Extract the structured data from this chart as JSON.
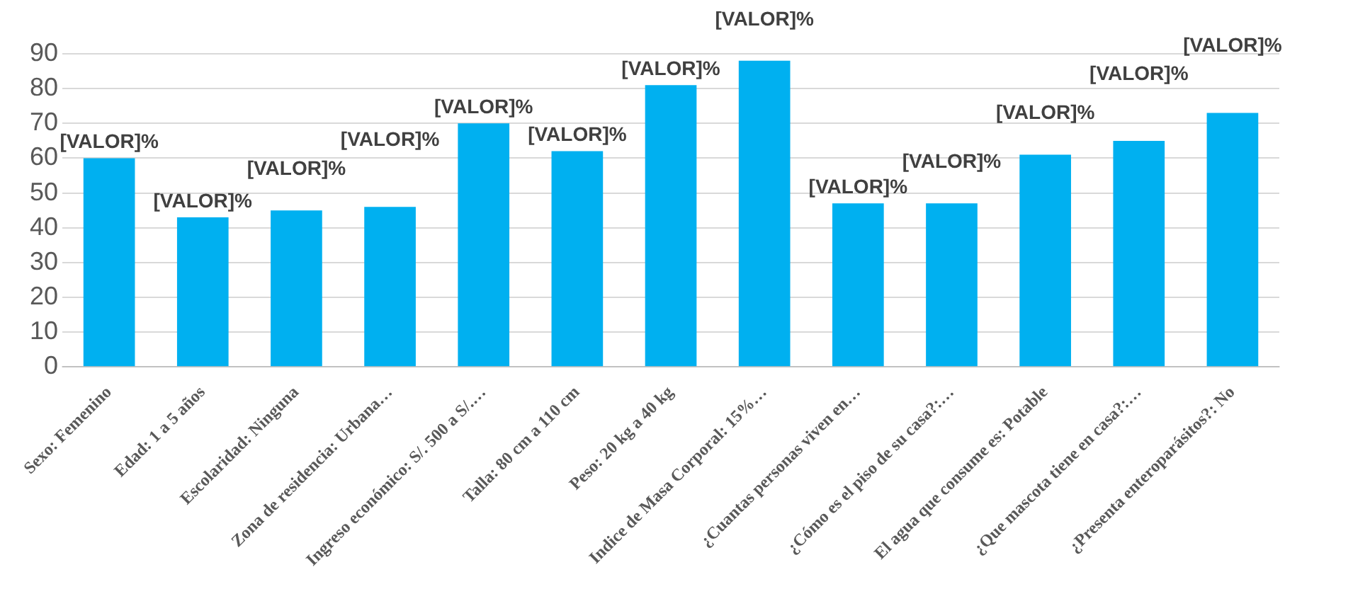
{
  "chart_data": {
    "type": "bar",
    "categories": [
      "Sexo: Femenino",
      "Edad: 1 a 5 años",
      "Escolaridad: Ninguna",
      "Zona de residencia: Urbana…",
      "Ingreso económico: S/. 500 a S/.…",
      "Talla: 80 cm a 110 cm",
      "Peso: 20 kg a 40 kg",
      "Indice de Masa Corporal: 15%…",
      "¿Cuantas personas viven en…",
      "¿Cómo es el piso de su casa?:…",
      "El agua que consume es: Potable",
      "¿Que mascota tiene en casa?:…",
      "¿Presenta enteroparásitos?: No"
    ],
    "values": [
      60,
      43,
      45,
      46,
      70,
      62,
      81,
      88,
      47,
      47,
      61,
      65,
      73
    ],
    "value_labels": [
      "[VALOR]%",
      "[VALOR]%",
      "[VALOR]%",
      "[VALOR]%",
      "[VALOR]%",
      "[VALOR]%",
      "[VALOR]%",
      "[VALOR]%",
      "[VALOR]%",
      "[VALOR]%",
      "[VALOR]%",
      "[VALOR]%",
      "[VALOR]%"
    ],
    "color": "#00b0f0",
    "ylim": [
      0,
      90
    ],
    "yticks": [
      0,
      10,
      20,
      30,
      40,
      50,
      60,
      70,
      80,
      90
    ],
    "grid": "y"
  }
}
